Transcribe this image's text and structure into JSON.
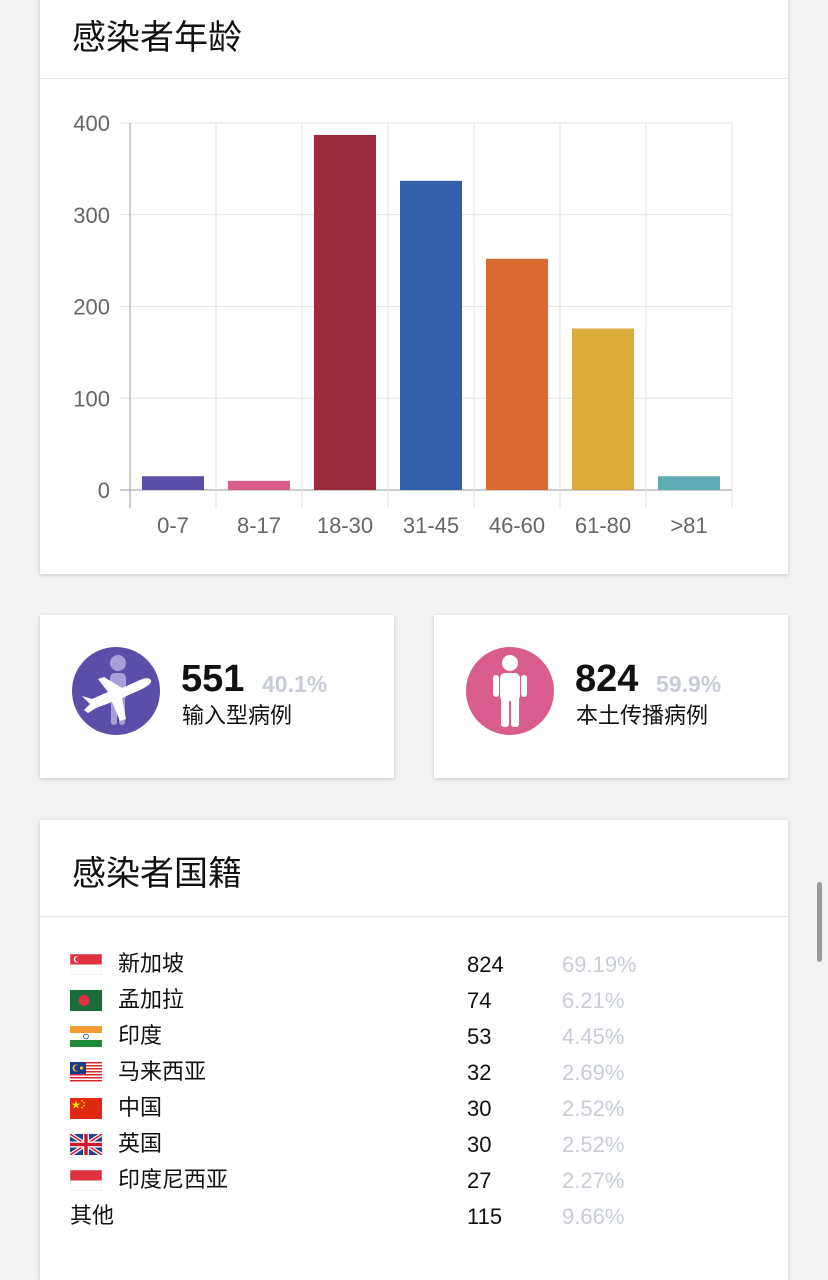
{
  "age_section": {
    "title": "感染者年龄"
  },
  "chart_data": {
    "type": "bar",
    "categories": [
      "0-7",
      "8-17",
      "18-30",
      "31-45",
      "46-60",
      "61-80",
      ">81"
    ],
    "values": [
      15,
      10,
      387,
      337,
      252,
      176,
      15
    ],
    "colors": [
      "#5b4ea8",
      "#d85c8c",
      "#9b2d3e",
      "#3360aa",
      "#d96a31",
      "#dbac3c",
      "#5faeb5"
    ],
    "yticks": [
      0,
      100,
      200,
      300,
      400
    ],
    "ylim": [
      0,
      400
    ],
    "grid": true
  },
  "stats": {
    "imported": {
      "number": "551",
      "percent": "40.1%",
      "label": "输入型病例",
      "icon": "airplane-traveler-icon",
      "color": "#5b4ea8"
    },
    "local": {
      "number": "824",
      "percent": "59.9%",
      "label": "本土传播病例",
      "icon": "person-icon",
      "color": "#d85c8c"
    }
  },
  "nationality_section": {
    "title": "感染者国籍",
    "rows": [
      {
        "name": "新加坡",
        "count": "824",
        "percent": "69.19%",
        "flag": "singapore-flag-icon"
      },
      {
        "name": "孟加拉",
        "count": "74",
        "percent": "6.21%",
        "flag": "bangladesh-flag-icon"
      },
      {
        "name": "印度",
        "count": "53",
        "percent": "4.45%",
        "flag": "india-flag-icon"
      },
      {
        "name": "马来西亚",
        "count": "32",
        "percent": "2.69%",
        "flag": "malaysia-flag-icon"
      },
      {
        "name": "中国",
        "count": "30",
        "percent": "2.52%",
        "flag": "china-flag-icon"
      },
      {
        "name": "英国",
        "count": "30",
        "percent": "2.52%",
        "flag": "uk-flag-icon"
      },
      {
        "name": "印度尼西亚",
        "count": "27",
        "percent": "2.27%",
        "flag": "indonesia-flag-icon"
      },
      {
        "name": "其他",
        "count": "115",
        "percent": "9.66%",
        "flag": ""
      }
    ]
  }
}
